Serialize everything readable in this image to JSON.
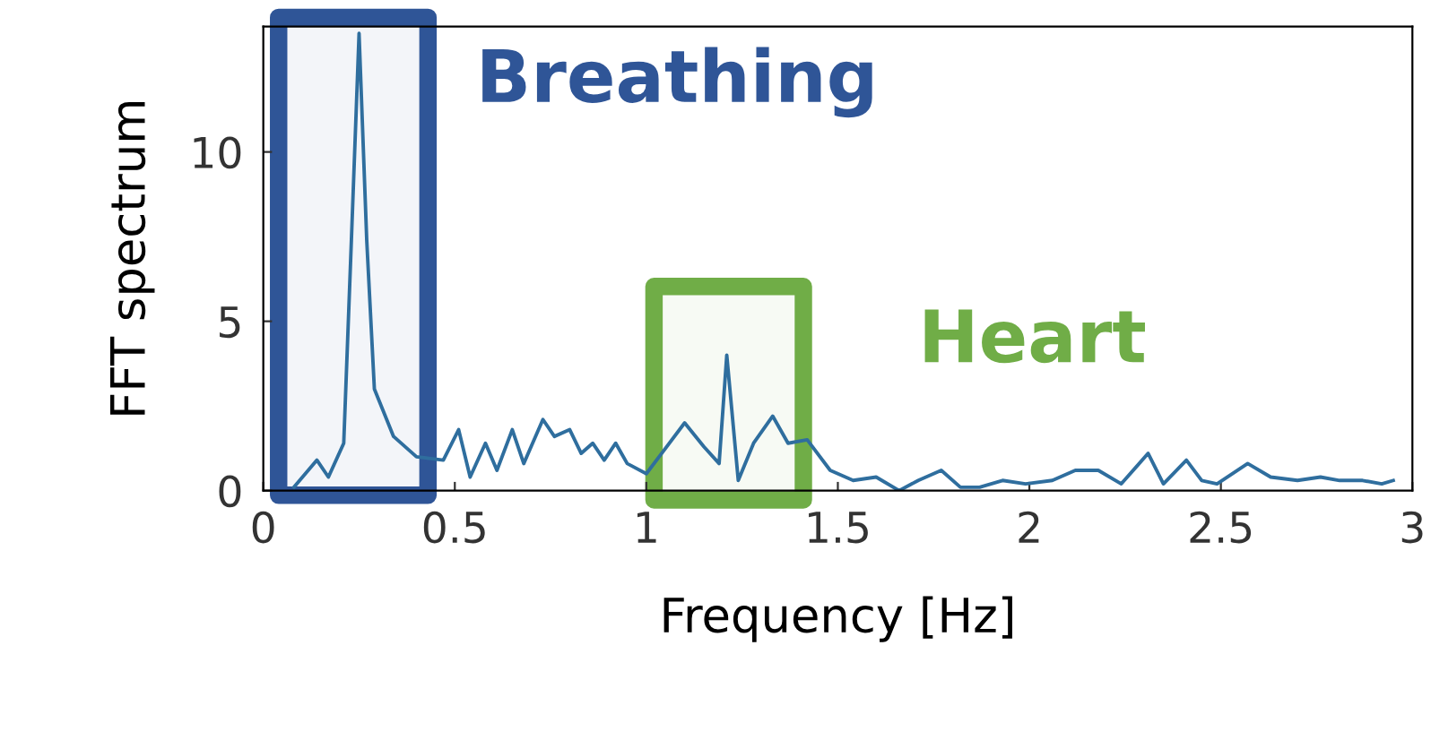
{
  "chart_data": {
    "type": "line",
    "xlabel": "Frequency [Hz]",
    "ylabel": "FFT spectrum",
    "x": [
      0.08,
      0.14,
      0.17,
      0.21,
      0.23,
      0.25,
      0.27,
      0.29,
      0.34,
      0.4,
      0.47,
      0.51,
      0.54,
      0.58,
      0.61,
      0.65,
      0.68,
      0.73,
      0.76,
      0.8,
      0.83,
      0.86,
      0.89,
      0.92,
      0.95,
      1.0,
      1.04,
      1.1,
      1.15,
      1.19,
      1.21,
      1.24,
      1.28,
      1.33,
      1.37,
      1.42,
      1.48,
      1.54,
      1.6,
      1.66,
      1.71,
      1.77,
      1.82,
      1.87,
      1.93,
      1.99,
      2.06,
      2.12,
      2.18,
      2.24,
      2.31,
      2.35,
      2.41,
      2.45,
      2.49,
      2.57,
      2.63,
      2.7,
      2.76,
      2.81,
      2.87,
      2.92,
      2.95
    ],
    "series": [
      {
        "color": "#2f6e9e",
        "values": [
          0.1,
          0.9,
          0.4,
          1.4,
          7.4,
          13.5,
          7.4,
          3.0,
          1.6,
          1.0,
          0.9,
          1.8,
          0.4,
          1.4,
          0.6,
          1.8,
          0.8,
          2.1,
          1.6,
          1.8,
          1.1,
          1.4,
          0.9,
          1.4,
          0.8,
          0.5,
          1.1,
          2.0,
          1.3,
          0.8,
          4.0,
          0.3,
          1.4,
          2.2,
          1.4,
          1.5,
          0.6,
          0.3,
          0.4,
          0.0,
          0.3,
          0.6,
          0.1,
          0.1,
          0.3,
          0.2,
          0.3,
          0.6,
          0.6,
          0.2,
          1.1,
          0.2,
          0.9,
          0.3,
          0.2,
          0.8,
          0.4,
          0.3,
          0.4,
          0.3,
          0.3,
          0.2,
          0.3
        ]
      }
    ],
    "xlim": [
      0,
      3
    ],
    "ylim": [
      0,
      13.7
    ],
    "xticks": [
      0,
      0.5,
      1,
      1.5,
      2,
      2.5,
      3
    ],
    "yticks": [
      0,
      5,
      10
    ],
    "bands": [
      {
        "axis": "x",
        "from": 0.04,
        "to": 0.43,
        "label": "Breathing",
        "color": "#2f5597"
      },
      {
        "axis": "x",
        "from": 1.02,
        "to": 1.41,
        "label": "Heart",
        "color": "#70ad47"
      }
    ],
    "grid": false,
    "legend": false,
    "marker": "none",
    "line_style": "solid"
  }
}
